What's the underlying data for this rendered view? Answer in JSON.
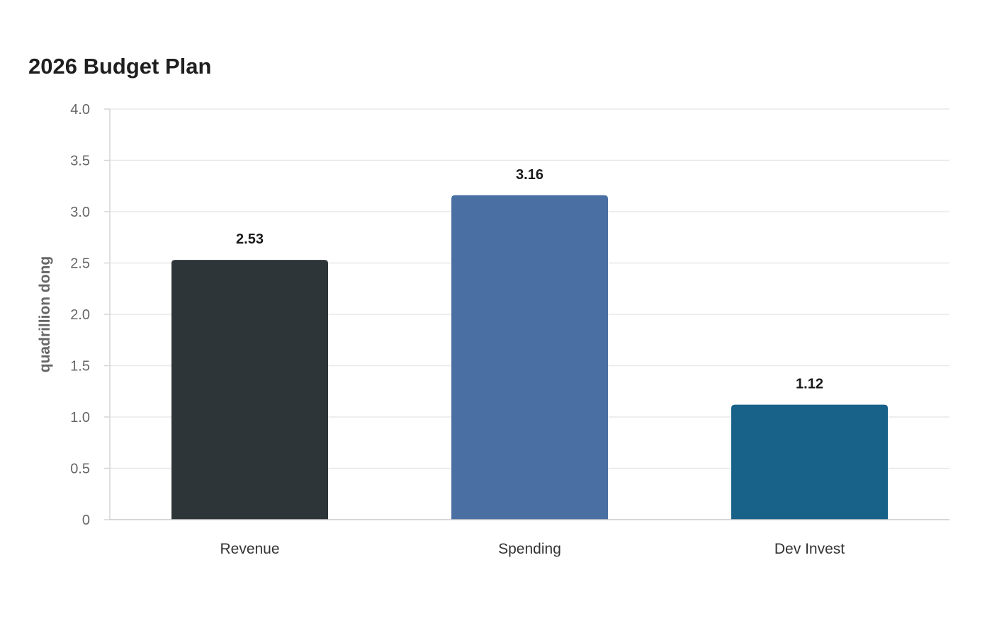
{
  "chart_data": {
    "type": "bar",
    "title": "2026 Budget Plan",
    "xlabel": "",
    "ylabel": "quadrillion dong",
    "categories": [
      "Revenue",
      "Spending",
      "Dev Invest"
    ],
    "values": [
      2.53,
      3.16,
      1.12
    ],
    "value_labels": [
      "2.53",
      "3.16",
      "1.12"
    ],
    "colors": [
      "#2e3538",
      "#4a6fa3",
      "#186188"
    ],
    "ylim": [
      0,
      4.0
    ],
    "yticks": [
      0,
      0.5,
      1.0,
      1.5,
      2.0,
      2.5,
      3.0,
      3.5,
      4.0
    ],
    "ytick_labels": [
      "0",
      "0.5",
      "1.0",
      "1.5",
      "2.0",
      "2.5",
      "3.0",
      "3.5",
      "4.0"
    ],
    "grid": true,
    "legend": "none"
  }
}
